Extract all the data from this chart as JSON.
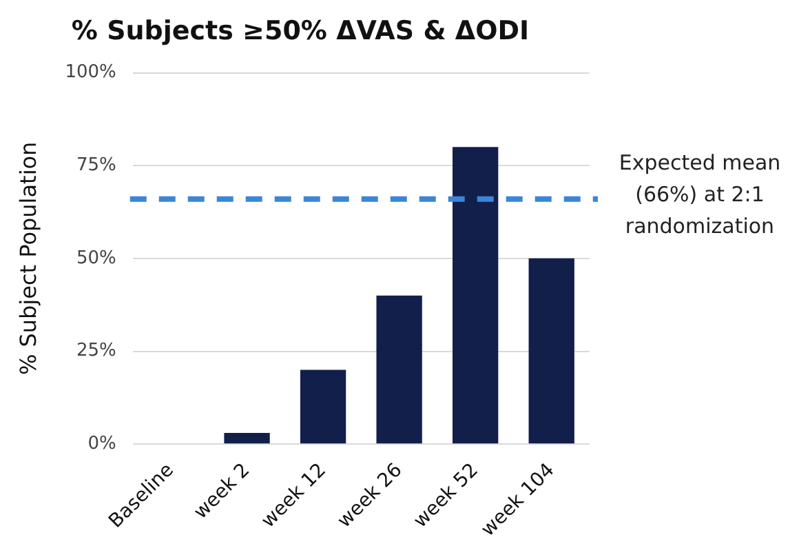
{
  "chart_data": {
    "type": "bar",
    "title": "% Subjects ≥50% ΔVAS & ΔODI",
    "ylabel": "% Subject Population",
    "categories": [
      "Baseline",
      "week 2",
      "week 12",
      "week 26",
      "week 52",
      "week 104"
    ],
    "values": [
      0,
      3,
      20,
      40,
      80,
      50
    ],
    "color": "#121f4b",
    "ylim": [
      0,
      100
    ],
    "yticks": [
      {
        "value": 0,
        "label": "0%"
      },
      {
        "value": 25,
        "label": "25%"
      },
      {
        "value": 50,
        "label": "50%"
      },
      {
        "value": 75,
        "label": "75%"
      },
      {
        "value": 100,
        "label": "100%"
      }
    ],
    "grid": "y",
    "ref_lines": [
      {
        "axis": "y",
        "value": 66,
        "label": "Expected mean\n(66%) at 2:1\nrandomization",
        "color": "#3a86d8",
        "line_style": "dashed"
      }
    ]
  }
}
